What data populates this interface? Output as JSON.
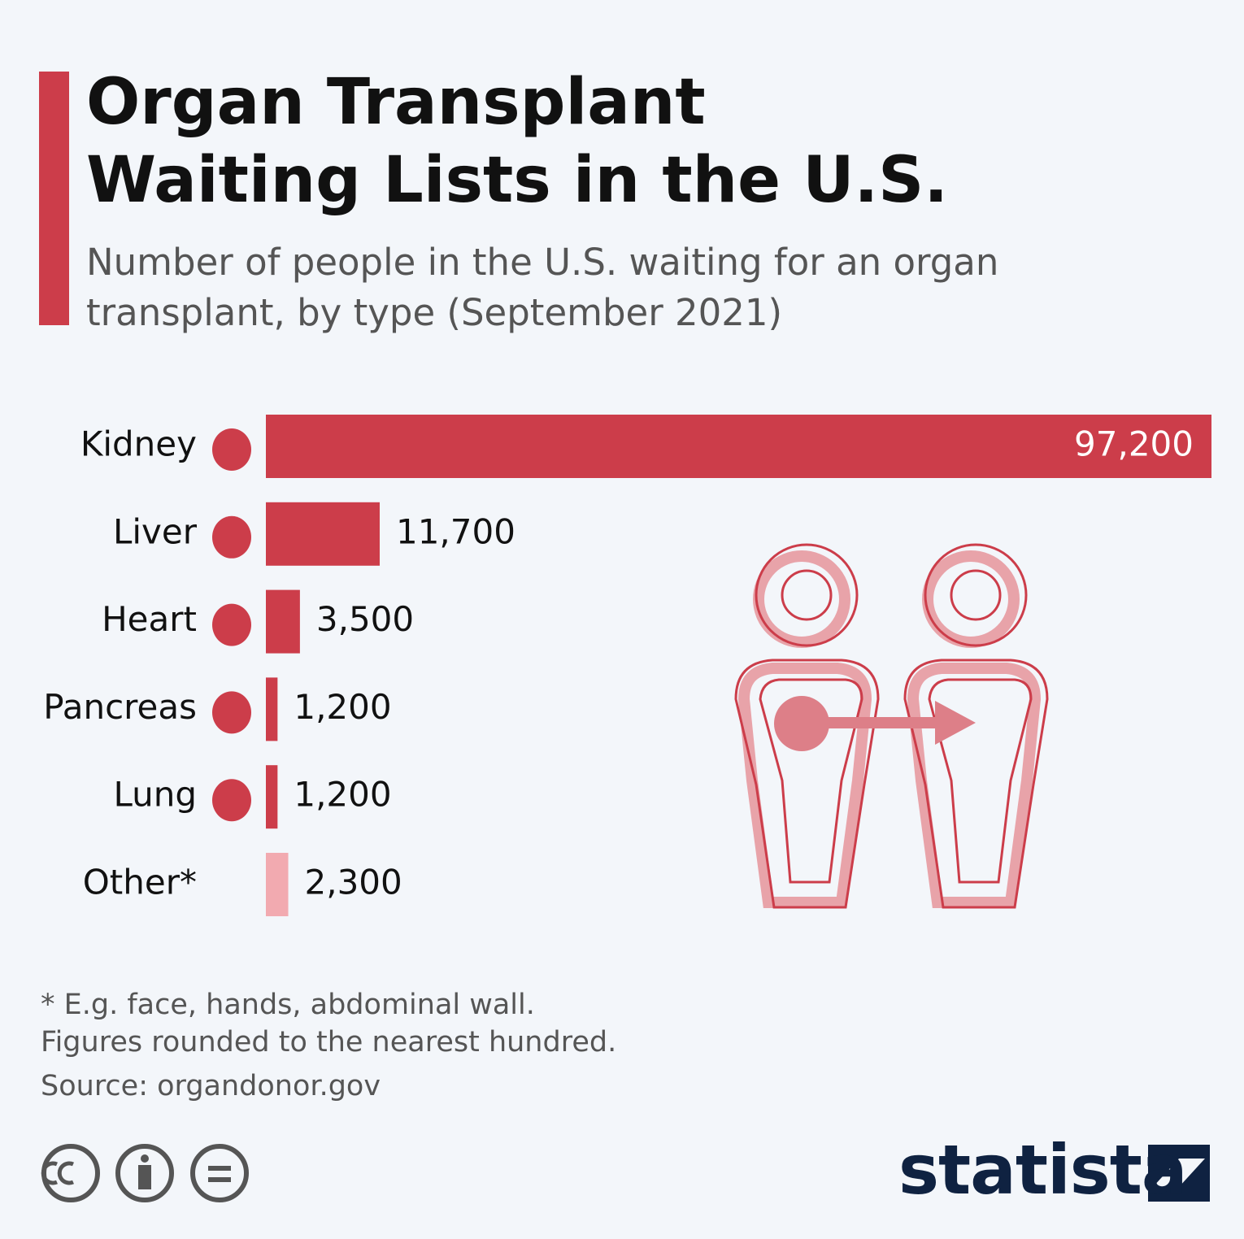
{
  "chart_data": {
    "type": "bar",
    "title": "Organ Transplant Waiting Lists in the U.S.",
    "subtitle": "Number of people in the U.S. waiting for an organ transplant, by type (September 2021)",
    "categories": [
      "Kidney",
      "Liver",
      "Heart",
      "Pancreas",
      "Lung",
      "Other*"
    ],
    "values": [
      97200,
      11700,
      3500,
      1200,
      1200,
      2300
    ],
    "value_labels": [
      "97,200",
      "11,700",
      "3,500",
      "1,200",
      "1,200",
      "2,300"
    ],
    "colors": [
      "#cc3d4a",
      "#cc3d4a",
      "#cc3d4a",
      "#cc3d4a",
      "#cc3d4a",
      "#f2aab0"
    ],
    "notes": [
      "* E.g. face, hands, abdominal wall.",
      "Figures rounded to the nearest hundred."
    ],
    "source": "Source: organdonor.gov",
    "brand": "statista"
  }
}
